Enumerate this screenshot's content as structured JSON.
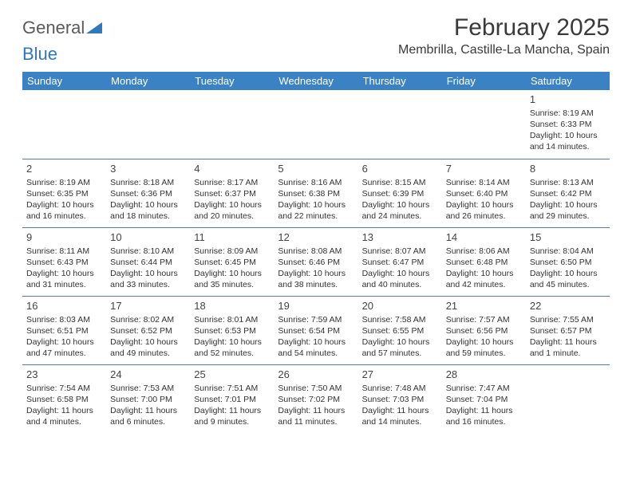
{
  "logo": {
    "line1": "General",
    "line2": "Blue",
    "line1_color": "#5a5a5a",
    "line2_color": "#2f78ba",
    "shape_color": "#2f78ba"
  },
  "header": {
    "title": "February 2025",
    "location": "Membrilla, Castille-La Mancha, Spain",
    "title_color": "#3a3a3a",
    "title_fontsize": 30,
    "location_fontsize": 16
  },
  "calendar": {
    "weekday_bg": "#3b82c4",
    "weekday_text_color": "#ffffff",
    "grid_border_color": "#5a7a9a",
    "cell_text_color": "#333333",
    "daynum_color": "#444444",
    "weekdays": [
      "Sunday",
      "Monday",
      "Tuesday",
      "Wednesday",
      "Thursday",
      "Friday",
      "Saturday"
    ],
    "weeks": [
      [
        null,
        null,
        null,
        null,
        null,
        null,
        {
          "n": "1",
          "sr": "Sunrise: 8:19 AM",
          "ss": "Sunset: 6:33 PM",
          "d1": "Daylight: 10 hours",
          "d2": "and 14 minutes."
        }
      ],
      [
        {
          "n": "2",
          "sr": "Sunrise: 8:19 AM",
          "ss": "Sunset: 6:35 PM",
          "d1": "Daylight: 10 hours",
          "d2": "and 16 minutes."
        },
        {
          "n": "3",
          "sr": "Sunrise: 8:18 AM",
          "ss": "Sunset: 6:36 PM",
          "d1": "Daylight: 10 hours",
          "d2": "and 18 minutes."
        },
        {
          "n": "4",
          "sr": "Sunrise: 8:17 AM",
          "ss": "Sunset: 6:37 PM",
          "d1": "Daylight: 10 hours",
          "d2": "and 20 minutes."
        },
        {
          "n": "5",
          "sr": "Sunrise: 8:16 AM",
          "ss": "Sunset: 6:38 PM",
          "d1": "Daylight: 10 hours",
          "d2": "and 22 minutes."
        },
        {
          "n": "6",
          "sr": "Sunrise: 8:15 AM",
          "ss": "Sunset: 6:39 PM",
          "d1": "Daylight: 10 hours",
          "d2": "and 24 minutes."
        },
        {
          "n": "7",
          "sr": "Sunrise: 8:14 AM",
          "ss": "Sunset: 6:40 PM",
          "d1": "Daylight: 10 hours",
          "d2": "and 26 minutes."
        },
        {
          "n": "8",
          "sr": "Sunrise: 8:13 AM",
          "ss": "Sunset: 6:42 PM",
          "d1": "Daylight: 10 hours",
          "d2": "and 29 minutes."
        }
      ],
      [
        {
          "n": "9",
          "sr": "Sunrise: 8:11 AM",
          "ss": "Sunset: 6:43 PM",
          "d1": "Daylight: 10 hours",
          "d2": "and 31 minutes."
        },
        {
          "n": "10",
          "sr": "Sunrise: 8:10 AM",
          "ss": "Sunset: 6:44 PM",
          "d1": "Daylight: 10 hours",
          "d2": "and 33 minutes."
        },
        {
          "n": "11",
          "sr": "Sunrise: 8:09 AM",
          "ss": "Sunset: 6:45 PM",
          "d1": "Daylight: 10 hours",
          "d2": "and 35 minutes."
        },
        {
          "n": "12",
          "sr": "Sunrise: 8:08 AM",
          "ss": "Sunset: 6:46 PM",
          "d1": "Daylight: 10 hours",
          "d2": "and 38 minutes."
        },
        {
          "n": "13",
          "sr": "Sunrise: 8:07 AM",
          "ss": "Sunset: 6:47 PM",
          "d1": "Daylight: 10 hours",
          "d2": "and 40 minutes."
        },
        {
          "n": "14",
          "sr": "Sunrise: 8:06 AM",
          "ss": "Sunset: 6:48 PM",
          "d1": "Daylight: 10 hours",
          "d2": "and 42 minutes."
        },
        {
          "n": "15",
          "sr": "Sunrise: 8:04 AM",
          "ss": "Sunset: 6:50 PM",
          "d1": "Daylight: 10 hours",
          "d2": "and 45 minutes."
        }
      ],
      [
        {
          "n": "16",
          "sr": "Sunrise: 8:03 AM",
          "ss": "Sunset: 6:51 PM",
          "d1": "Daylight: 10 hours",
          "d2": "and 47 minutes."
        },
        {
          "n": "17",
          "sr": "Sunrise: 8:02 AM",
          "ss": "Sunset: 6:52 PM",
          "d1": "Daylight: 10 hours",
          "d2": "and 49 minutes."
        },
        {
          "n": "18",
          "sr": "Sunrise: 8:01 AM",
          "ss": "Sunset: 6:53 PM",
          "d1": "Daylight: 10 hours",
          "d2": "and 52 minutes."
        },
        {
          "n": "19",
          "sr": "Sunrise: 7:59 AM",
          "ss": "Sunset: 6:54 PM",
          "d1": "Daylight: 10 hours",
          "d2": "and 54 minutes."
        },
        {
          "n": "20",
          "sr": "Sunrise: 7:58 AM",
          "ss": "Sunset: 6:55 PM",
          "d1": "Daylight: 10 hours",
          "d2": "and 57 minutes."
        },
        {
          "n": "21",
          "sr": "Sunrise: 7:57 AM",
          "ss": "Sunset: 6:56 PM",
          "d1": "Daylight: 10 hours",
          "d2": "and 59 minutes."
        },
        {
          "n": "22",
          "sr": "Sunrise: 7:55 AM",
          "ss": "Sunset: 6:57 PM",
          "d1": "Daylight: 11 hours",
          "d2": "and 1 minute."
        }
      ],
      [
        {
          "n": "23",
          "sr": "Sunrise: 7:54 AM",
          "ss": "Sunset: 6:58 PM",
          "d1": "Daylight: 11 hours",
          "d2": "and 4 minutes."
        },
        {
          "n": "24",
          "sr": "Sunrise: 7:53 AM",
          "ss": "Sunset: 7:00 PM",
          "d1": "Daylight: 11 hours",
          "d2": "and 6 minutes."
        },
        {
          "n": "25",
          "sr": "Sunrise: 7:51 AM",
          "ss": "Sunset: 7:01 PM",
          "d1": "Daylight: 11 hours",
          "d2": "and 9 minutes."
        },
        {
          "n": "26",
          "sr": "Sunrise: 7:50 AM",
          "ss": "Sunset: 7:02 PM",
          "d1": "Daylight: 11 hours",
          "d2": "and 11 minutes."
        },
        {
          "n": "27",
          "sr": "Sunrise: 7:48 AM",
          "ss": "Sunset: 7:03 PM",
          "d1": "Daylight: 11 hours",
          "d2": "and 14 minutes."
        },
        {
          "n": "28",
          "sr": "Sunrise: 7:47 AM",
          "ss": "Sunset: 7:04 PM",
          "d1": "Daylight: 11 hours",
          "d2": "and 16 minutes."
        },
        null
      ]
    ]
  }
}
